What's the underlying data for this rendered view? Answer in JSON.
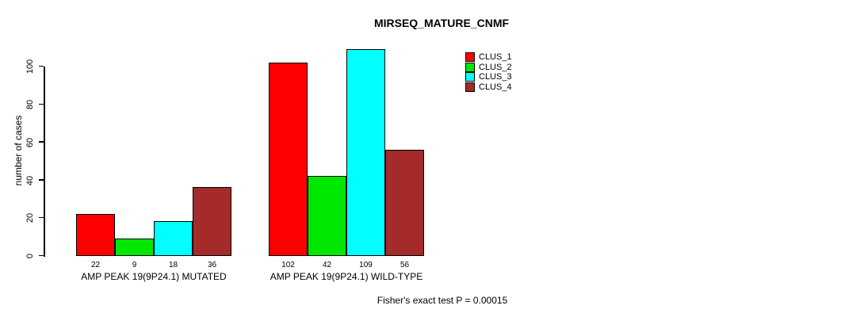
{
  "chart_data": {
    "type": "bar",
    "title": "MIRSEQ_MATURE_CNMF",
    "ylabel": "number of cases",
    "xlabel": "",
    "ylim": [
      0,
      110
    ],
    "yticks": [
      0,
      20,
      40,
      60,
      80,
      100
    ],
    "grid": false,
    "legend_position": "top-right",
    "series": [
      {
        "name": "CLUS_1",
        "color": "#FF0000"
      },
      {
        "name": "CLUS_2",
        "color": "#00E800"
      },
      {
        "name": "CLUS_3",
        "color": "#00FFFF"
      },
      {
        "name": "CLUS_4",
        "color": "#A52A2A"
      }
    ],
    "groups": [
      {
        "label": "AMP PEAK 19(9P24.1) MUTATED",
        "values": [
          22,
          9,
          18,
          36
        ]
      },
      {
        "label": "AMP PEAK 19(9P24.1) WILD-TYPE",
        "values": [
          102,
          42,
          109,
          56
        ]
      }
    ],
    "annotation": "Fisher's exact test P = 0.00015",
    "colors": {
      "background": "#ffffff",
      "axis": "#000000",
      "text": "#000000"
    }
  }
}
